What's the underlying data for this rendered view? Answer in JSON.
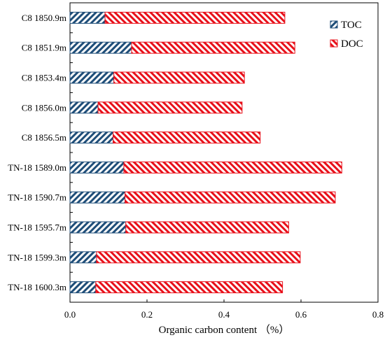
{
  "chart_data": {
    "type": "bar",
    "orientation": "horizontal",
    "stacked": true,
    "categories": [
      "C8 1850.9m",
      "C8 1851.9m",
      "C8 1853.4m",
      "C8 1856.0m",
      "C8 1856.5m",
      "TN-18 1589.0m",
      "TN-18 1590.7m",
      "TN-18 1595.7m",
      "TN-18 1599.3m",
      "TN-18 1600.3m"
    ],
    "series": [
      {
        "name": "TOC",
        "color": "#1f4e79",
        "pattern": "hatch-right",
        "values": [
          0.091,
          0.16,
          0.114,
          0.073,
          0.112,
          0.14,
          0.143,
          0.145,
          0.069,
          0.067
        ]
      },
      {
        "name": "DOC",
        "color": "#e8101a",
        "pattern": "hatch-left",
        "values": [
          0.467,
          0.424,
          0.339,
          0.374,
          0.382,
          0.566,
          0.546,
          0.423,
          0.529,
          0.485
        ]
      }
    ],
    "xlabel": "Organic carbon content （%）",
    "xlim": [
      0,
      0.8
    ],
    "xticks": [
      "0.0",
      "0.2",
      "0.4",
      "0.6",
      "0.8"
    ],
    "grid": false,
    "legend_position": "top-right"
  }
}
